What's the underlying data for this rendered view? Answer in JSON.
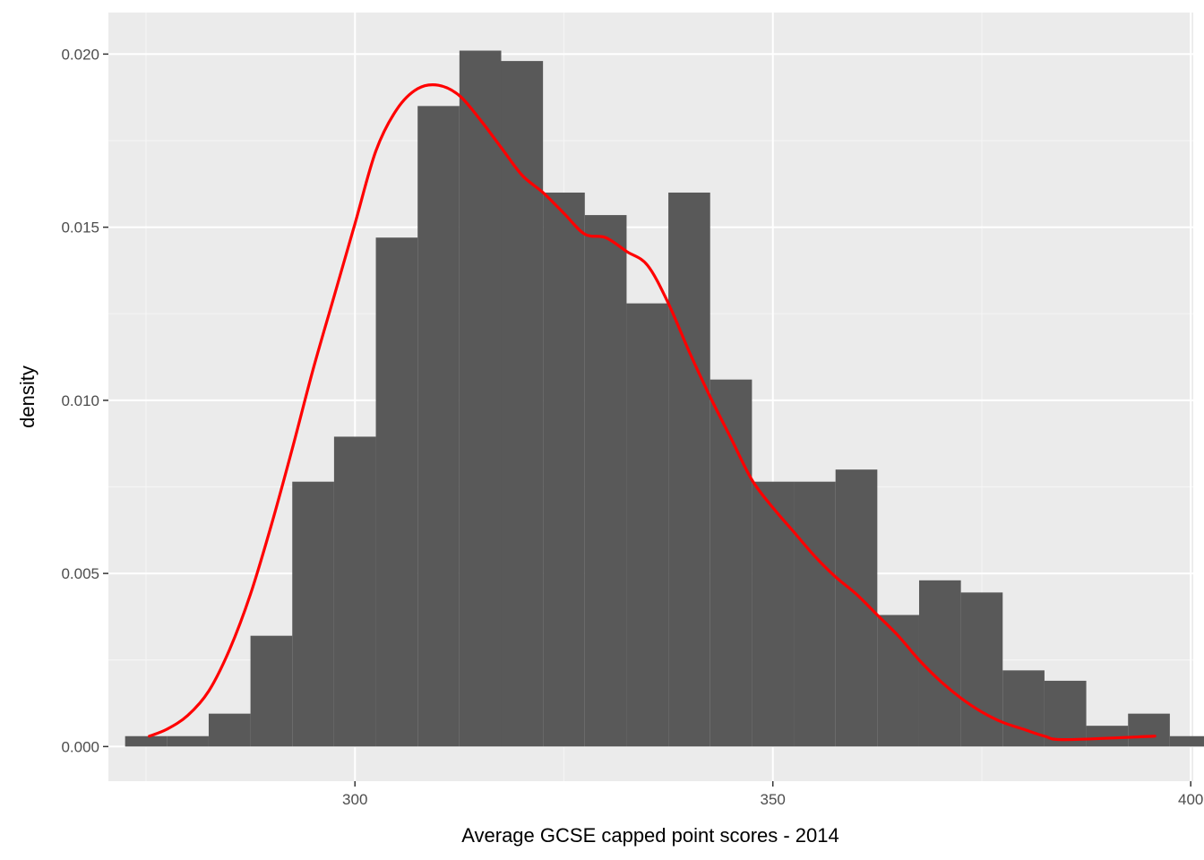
{
  "chart_data": {
    "type": "histogram",
    "xlabel": "Average GCSE capped point scores - 2014",
    "ylabel": "density",
    "xlim": [
      270.5,
      400.3
    ],
    "ylim": [
      -0.001,
      0.0212
    ],
    "x_ticks": [
      300,
      350,
      400
    ],
    "x_tick_labels": [
      "300",
      "350",
      "400"
    ],
    "y_ticks": [
      0.0,
      0.005,
      0.01,
      0.015,
      0.02
    ],
    "y_tick_labels": [
      "0.000",
      "0.005",
      "0.010",
      "0.015",
      "0.020"
    ],
    "grid": true,
    "bin_width": 5.0,
    "bins": [
      {
        "x0": 272.5,
        "x1": 277.5,
        "density": 0.0003
      },
      {
        "x0": 277.5,
        "x1": 282.5,
        "density": 0.0003
      },
      {
        "x0": 282.5,
        "x1": 287.5,
        "density": 0.00095
      },
      {
        "x0": 287.5,
        "x1": 292.5,
        "density": 0.0032
      },
      {
        "x0": 292.5,
        "x1": 297.5,
        "density": 0.00765
      },
      {
        "x0": 297.5,
        "x1": 302.5,
        "density": 0.00895
      },
      {
        "x0": 302.5,
        "x1": 307.5,
        "density": 0.0147
      },
      {
        "x0": 307.5,
        "x1": 312.5,
        "density": 0.0185
      },
      {
        "x0": 312.5,
        "x1": 317.5,
        "density": 0.0201
      },
      {
        "x0": 317.5,
        "x1": 322.5,
        "density": 0.0198
      },
      {
        "x0": 322.5,
        "x1": 327.5,
        "density": 0.016
      },
      {
        "x0": 327.5,
        "x1": 332.5,
        "density": 0.01535
      },
      {
        "x0": 332.5,
        "x1": 337.5,
        "density": 0.0128
      },
      {
        "x0": 337.5,
        "x1": 342.5,
        "density": 0.016
      },
      {
        "x0": 342.5,
        "x1": 347.5,
        "density": 0.0106
      },
      {
        "x0": 347.5,
        "x1": 352.5,
        "density": 0.00765
      },
      {
        "x0": 352.5,
        "x1": 357.5,
        "density": 0.00765
      },
      {
        "x0": 357.5,
        "x1": 362.5,
        "density": 0.008
      },
      {
        "x0": 362.5,
        "x1": 367.5,
        "density": 0.0038
      },
      {
        "x0": 367.5,
        "x1": 372.5,
        "density": 0.0048
      },
      {
        "x0": 372.5,
        "x1": 377.5,
        "density": 0.00445
      },
      {
        "x0": 377.5,
        "x1": 382.5,
        "density": 0.0022
      },
      {
        "x0": 382.5,
        "x1": 387.5,
        "density": 0.0019
      },
      {
        "x0": 387.5,
        "x1": 392.5,
        "density": 0.0006
      },
      {
        "x0": 392.5,
        "x1": 397.5,
        "density": 0.00095
      },
      {
        "x0": 397.5,
        "x1": 402.5,
        "density": 0.0003
      }
    ],
    "density_curve": {
      "color": "#ff0000",
      "points": [
        [
          275.4,
          0.0003
        ],
        [
          277.5,
          0.0005
        ],
        [
          280,
          0.0009
        ],
        [
          282.5,
          0.0016
        ],
        [
          285,
          0.0028
        ],
        [
          287.5,
          0.0044
        ],
        [
          290,
          0.0064
        ],
        [
          292.5,
          0.0086
        ],
        [
          295,
          0.0109
        ],
        [
          297.5,
          0.013
        ],
        [
          300,
          0.0151
        ],
        [
          302.5,
          0.0172
        ],
        [
          305,
          0.0184
        ],
        [
          307.5,
          0.019
        ],
        [
          310,
          0.0191
        ],
        [
          312.5,
          0.0188
        ],
        [
          315,
          0.0181
        ],
        [
          317.5,
          0.0173
        ],
        [
          320,
          0.0165
        ],
        [
          322.5,
          0.016
        ],
        [
          325,
          0.0154
        ],
        [
          327.5,
          0.0148
        ],
        [
          330,
          0.0147
        ],
        [
          332.5,
          0.0143
        ],
        [
          335,
          0.0139
        ],
        [
          337.5,
          0.0128
        ],
        [
          340,
          0.0114
        ],
        [
          342.5,
          0.0101
        ],
        [
          345,
          0.0089
        ],
        [
          347.5,
          0.0077
        ],
        [
          350,
          0.0069
        ],
        [
          352.5,
          0.0062
        ],
        [
          355,
          0.0055
        ],
        [
          357.5,
          0.0049
        ],
        [
          360,
          0.0044
        ],
        [
          362.5,
          0.0038
        ],
        [
          365,
          0.0032
        ],
        [
          367.5,
          0.0025
        ],
        [
          370,
          0.0019
        ],
        [
          372.5,
          0.0014
        ],
        [
          375,
          0.001
        ],
        [
          377.5,
          0.0007
        ],
        [
          380,
          0.0005
        ],
        [
          382.5,
          0.0003
        ],
        [
          385,
          0.0002
        ],
        [
          395.7,
          0.0003
        ]
      ]
    },
    "colors": {
      "panel_background": "#ebebeb",
      "grid_major": "#ffffff",
      "grid_minor": "#f5f5f5",
      "bar_fill": "#595959",
      "curve": "#ff0000",
      "tick_label": "#4d4d4d",
      "axis_title": "#000000"
    }
  }
}
